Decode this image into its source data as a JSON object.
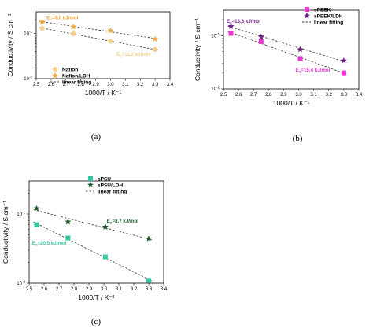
{
  "colors": {
    "nafion": "#f5cf8a",
    "nafion_ldh": "#efa93a",
    "speek": "#e935d3",
    "speek_ldh": "#6e1f86",
    "spsu": "#33c9a0",
    "spsu_ldh": "#1f5c2a"
  },
  "chart_data": [
    {
      "type": "scatter",
      "panel_label": "(a)",
      "xlabel": "1000/T / K⁻¹",
      "ylabel": "Conductivity / S cm⁻¹",
      "xlim": [
        2.5,
        3.4
      ],
      "ylim": [
        0.01,
        0.3
      ],
      "yscale": "log",
      "x_ticks": [
        "2.5",
        "2.6",
        "2.7",
        "2.8",
        "2.9",
        "3.0",
        "3.1",
        "3.2",
        "3.3",
        "3.4"
      ],
      "y_ticks": [
        {
          "base": "10",
          "exp": "-2",
          "value": 0.01
        },
        {
          "base": "10",
          "exp": "-1",
          "value": 0.1
        }
      ],
      "legend_position": "bottom-left",
      "series": [
        {
          "name": "Nafion",
          "marker": "pentagon",
          "color_key": "nafion",
          "x": [
            2.54,
            2.75,
            3.0,
            3.3
          ],
          "y": [
            0.13,
            0.098,
            0.067,
            0.044
          ]
        },
        {
          "name": "Nafion/LDH",
          "marker": "star",
          "color_key": "nafion_ldh",
          "x": [
            2.54,
            2.75,
            3.0,
            3.3
          ],
          "y": [
            0.18,
            0.14,
            0.115,
            0.075
          ]
        }
      ],
      "fit_label": "linear fitting",
      "annotations": [
        {
          "text_main": "E",
          "text_sub": "a",
          "text_rest": "=9,0 kJ/mol",
          "color_key": "nafion_ldh",
          "x": 2.57,
          "y": 0.205
        },
        {
          "text_main": "E",
          "text_sub": "a",
          "text_rest": "=11,2 kJ/mol",
          "color_key": "nafion",
          "x": 3.04,
          "y": 0.032
        }
      ]
    },
    {
      "type": "scatter",
      "panel_label": "(b)",
      "xlabel": "1000/T / K⁻¹",
      "ylabel": "Conductivity / S cm⁻¹",
      "xlim": [
        2.5,
        3.4
      ],
      "ylim": [
        0.01,
        0.3
      ],
      "yscale": "log",
      "x_ticks": [
        "2.5",
        "2.6",
        "2.7",
        "2.8",
        "2.9",
        "3.0",
        "3.1",
        "3.2",
        "3.3",
        "3.4"
      ],
      "y_ticks": [
        {
          "base": "10",
          "exp": "-2",
          "value": 0.01
        },
        {
          "base": "10",
          "exp": "-1",
          "value": 0.1
        }
      ],
      "legend_position": "top-right",
      "series": [
        {
          "name": "sPEEK",
          "marker": "square",
          "color_key": "speek",
          "x": [
            2.55,
            2.75,
            3.01,
            3.3
          ],
          "y": [
            0.11,
            0.077,
            0.037,
            0.02
          ]
        },
        {
          "name": "sPEEK/LDH",
          "marker": "star",
          "color_key": "speek_ldh",
          "x": [
            2.55,
            2.75,
            3.01,
            3.3
          ],
          "y": [
            0.15,
            0.095,
            0.055,
            0.034
          ]
        }
      ],
      "fit_label": "linear fitting",
      "annotations": [
        {
          "text_main": "E",
          "text_sub": "a",
          "text_rest": "=13,8 kJ/mol",
          "color_key": "speek_ldh",
          "x": 2.52,
          "y": 0.175
        },
        {
          "text_main": "E",
          "text_sub": "a",
          "text_rest": "=15,4 kJ/mol",
          "color_key": "speek",
          "x": 2.98,
          "y": 0.021
        }
      ]
    },
    {
      "type": "scatter",
      "panel_label": "(c)",
      "xlabel": "1000/T / K⁻¹",
      "ylabel": "Conductivity / S cm⁻¹",
      "xlim": [
        2.5,
        3.4
      ],
      "ylim": [
        0.01,
        0.3
      ],
      "yscale": "log",
      "x_ticks": [
        "2.5",
        "2.6",
        "2.7",
        "2.8",
        "2.9",
        "3.0",
        "3.1",
        "3.2",
        "3.3",
        "3.4"
      ],
      "y_ticks": [
        {
          "base": "10",
          "exp": "-2",
          "value": 0.01
        },
        {
          "base": "10",
          "exp": "-1",
          "value": 0.1
        }
      ],
      "legend_position": "top-center",
      "series": [
        {
          "name": "sPSU",
          "marker": "square",
          "color_key": "spsu",
          "x": [
            2.55,
            2.76,
            3.01,
            3.3
          ],
          "y": [
            0.07,
            0.045,
            0.024,
            0.011
          ]
        },
        {
          "name": "sPSU/LDH",
          "marker": "star",
          "color_key": "spsu_ldh",
          "x": [
            2.55,
            2.76,
            3.01,
            3.3
          ],
          "y": [
            0.12,
            0.077,
            0.065,
            0.044
          ]
        }
      ],
      "fit_label": "linear fitting",
      "annotations": [
        {
          "text_main": "E",
          "text_sub": "a",
          "text_rest": "=8,7 kJ/mol",
          "color_key": "spsu_ldh",
          "x": 3.02,
          "y": 0.075
        },
        {
          "text_main": "E",
          "text_sub": "a",
          "text_rest": "=20,5 kJ/mol",
          "color_key": "spsu",
          "x": 2.52,
          "y": 0.036
        }
      ]
    }
  ]
}
